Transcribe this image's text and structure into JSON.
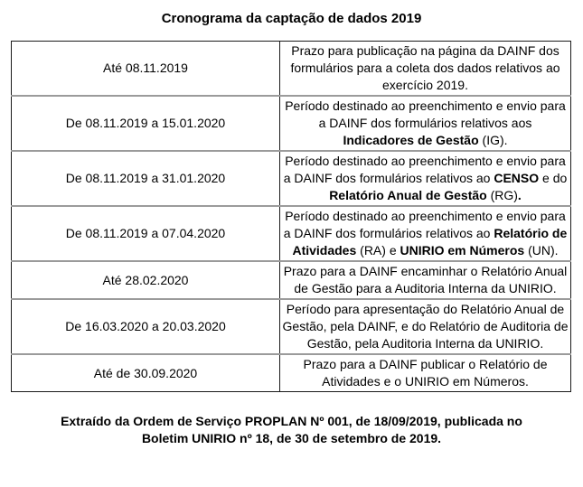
{
  "title": "Cronograma da captação de dados 2019",
  "table": {
    "rows": [
      {
        "period": "Até 08.11.2019",
        "description": [
          {
            "text": "Prazo para publicação na página da DAINF dos formulários para a coleta dos dados relativos ao exercício 2019.",
            "bold": false
          }
        ]
      },
      {
        "period": "De 08.11.2019 a 15.01.2020",
        "description": [
          {
            "text": "Período destinado ao preenchimento e envio para a DAINF dos formulários relativos aos ",
            "bold": false
          },
          {
            "text": "Indicadores de Gestão",
            "bold": true
          },
          {
            "text": " (IG).",
            "bold": false
          }
        ]
      },
      {
        "period": "De 08.11.2019 a 31.01.2020",
        "description": [
          {
            "text": "Período destinado ao preenchimento e envio para a DAINF dos formulários relativos ao ",
            "bold": false
          },
          {
            "text": "CENSO",
            "bold": true
          },
          {
            "text": " e do ",
            "bold": false
          },
          {
            "text": "Relatório Anual de Gestão",
            "bold": true
          },
          {
            "text": " (RG)",
            "bold": false
          },
          {
            "text": ".",
            "bold": true
          }
        ]
      },
      {
        "period": "De 08.11.2019 a 07.04.2020",
        "description": [
          {
            "text": "Período destinado ao preenchimento e envio para a DAINF dos formulários relativos ao ",
            "bold": false
          },
          {
            "text": "Relatório de Atividades",
            "bold": true
          },
          {
            "text": " (RA) e ",
            "bold": false
          },
          {
            "text": "UNIRIO em Números",
            "bold": true
          },
          {
            "text": " (UN).",
            "bold": false
          }
        ]
      },
      {
        "period": "Até 28.02.2020",
        "description": [
          {
            "text": "Prazo para a DAINF encaminhar o Relatório Anual de Gestão para a Auditoria Interna da UNIRIO.",
            "bold": false
          }
        ]
      },
      {
        "period": "De 16.03.2020 a 20.03.2020",
        "description": [
          {
            "text": "Período para apresentação do Relatório Anual de Gestão, pela DAINF, e do Relatório de Auditoria de Gestão, pela Auditoria Interna da UNIRIO.",
            "bold": false
          }
        ]
      },
      {
        "period": "Até de 30.09.2020",
        "description": [
          {
            "text": "Prazo para a DAINF publicar o Relatório de Atividades e o UNIRIO em Números.",
            "bold": false
          }
        ]
      }
    ]
  },
  "footer": {
    "lines": [
      "Extraído da Ordem de Serviço PROPLAN Nº 001, de 18/09/2019, publicada no",
      "Boletim UNIRIO nº 18, de 30 de setembro de 2019."
    ]
  }
}
